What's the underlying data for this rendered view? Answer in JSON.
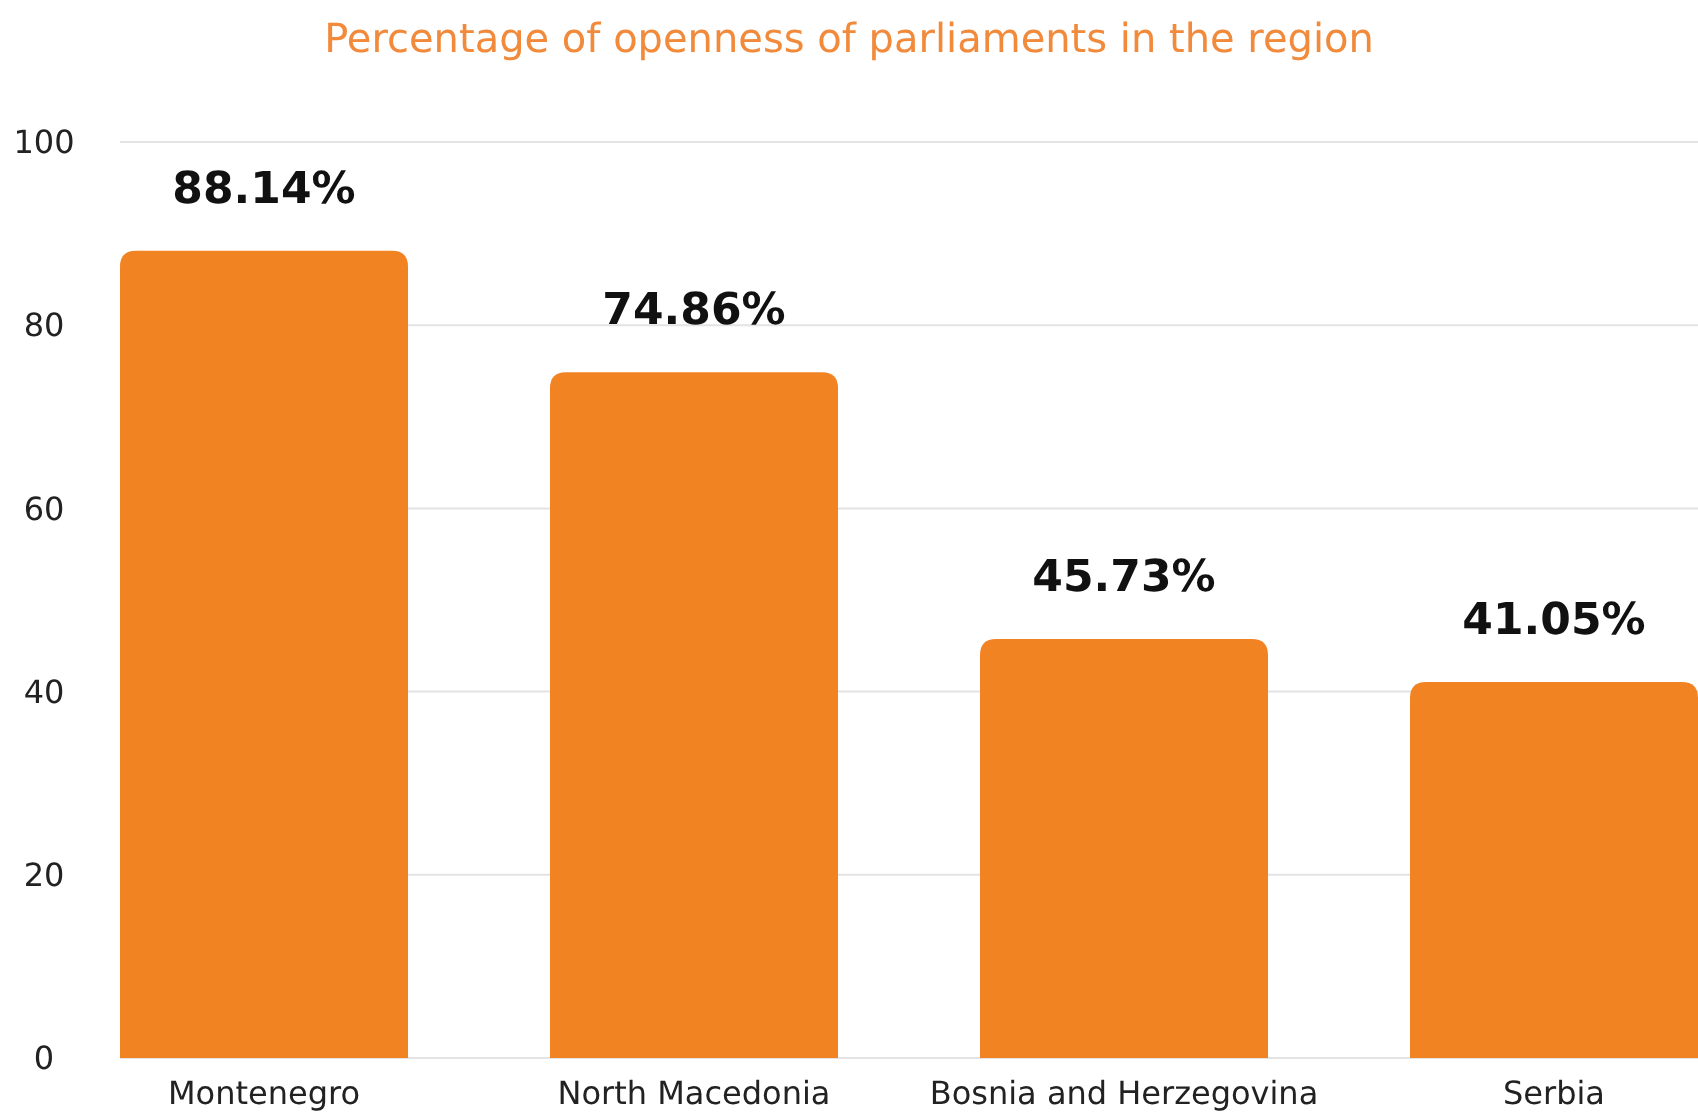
{
  "chart_data": {
    "type": "bar",
    "title": "Percentage of openness of parliaments in the region",
    "categories": [
      "Montenegro",
      "North Macedonia",
      "Bosnia and Herzegovina",
      "Serbia"
    ],
    "values": [
      88.14,
      74.86,
      45.73,
      41.05
    ],
    "color": "#f28323",
    "value_labels": [
      "88.14%",
      "74.86%",
      "45.73%",
      "41.05%"
    ],
    "ylim": [
      0,
      100
    ],
    "yticks": [
      0,
      20,
      40,
      60,
      80,
      100
    ],
    "grid": "y"
  }
}
